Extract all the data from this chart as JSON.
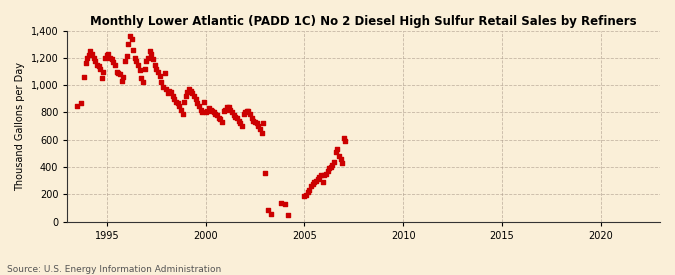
{
  "title": "Monthly Lower Atlantic (PADD 1C) No 2 Diesel High Sulfur Retail Sales by Refiners",
  "ylabel": "Thousand Gallons per Day",
  "source": "Source: U.S. Energy Information Administration",
  "background_color": "#faefd8",
  "marker_color": "#cc0000",
  "xlim": [
    1993.0,
    2023.0
  ],
  "ylim": [
    0,
    1400
  ],
  "yticks": [
    0,
    200,
    400,
    600,
    800,
    1000,
    1200,
    1400
  ],
  "xticks": [
    1995,
    2000,
    2005,
    2010,
    2015,
    2020
  ],
  "data_x": [
    1993.5,
    1993.67,
    1993.83,
    1993.92,
    1994.0,
    1994.08,
    1994.17,
    1994.25,
    1994.33,
    1994.42,
    1994.5,
    1994.58,
    1994.67,
    1994.75,
    1994.83,
    1994.92,
    1995.0,
    1995.08,
    1995.17,
    1995.25,
    1995.33,
    1995.42,
    1995.5,
    1995.58,
    1995.67,
    1995.75,
    1995.83,
    1995.92,
    1996.0,
    1996.08,
    1996.17,
    1996.25,
    1996.33,
    1996.42,
    1996.5,
    1996.58,
    1996.67,
    1996.75,
    1996.83,
    1996.92,
    1997.0,
    1997.08,
    1997.17,
    1997.25,
    1997.33,
    1997.42,
    1997.5,
    1997.58,
    1997.67,
    1997.75,
    1997.83,
    1997.92,
    1998.0,
    1998.08,
    1998.17,
    1998.25,
    1998.33,
    1998.42,
    1998.5,
    1998.58,
    1998.67,
    1998.75,
    1998.83,
    1998.92,
    1999.0,
    1999.08,
    1999.17,
    1999.25,
    1999.33,
    1999.42,
    1999.5,
    1999.58,
    1999.67,
    1999.75,
    1999.83,
    1999.92,
    2000.0,
    2000.08,
    2000.17,
    2000.25,
    2000.33,
    2000.42,
    2000.5,
    2000.58,
    2000.67,
    2000.75,
    2000.83,
    2000.92,
    2001.0,
    2001.08,
    2001.17,
    2001.25,
    2001.33,
    2001.42,
    2001.5,
    2001.58,
    2001.67,
    2001.75,
    2001.83,
    2001.92,
    2002.0,
    2002.08,
    2002.17,
    2002.25,
    2002.33,
    2002.42,
    2002.5,
    2002.58,
    2002.67,
    2002.75,
    2002.83,
    2002.92,
    2003.0,
    2003.17,
    2003.33,
    2003.83,
    2004.0,
    2004.17,
    2005.0,
    2005.08,
    2005.17,
    2005.25,
    2005.33,
    2005.42,
    2005.5,
    2005.58,
    2005.67,
    2005.75,
    2005.83,
    2005.92,
    2006.0,
    2006.08,
    2006.17,
    2006.25,
    2006.33,
    2006.42,
    2006.5,
    2006.58,
    2006.67,
    2006.75,
    2006.83,
    2006.92,
    2007.0,
    2007.08
  ],
  "data_y": [
    850,
    870,
    1060,
    1160,
    1200,
    1220,
    1250,
    1230,
    1200,
    1180,
    1150,
    1140,
    1120,
    1050,
    1100,
    1200,
    1220,
    1230,
    1200,
    1190,
    1170,
    1150,
    1100,
    1090,
    1080,
    1030,
    1060,
    1180,
    1210,
    1300,
    1360,
    1340,
    1260,
    1200,
    1180,
    1150,
    1110,
    1050,
    1020,
    1120,
    1180,
    1200,
    1250,
    1230,
    1190,
    1150,
    1120,
    1100,
    1070,
    1020,
    990,
    1090,
    970,
    940,
    960,
    950,
    920,
    900,
    880,
    870,
    850,
    820,
    790,
    880,
    920,
    950,
    970,
    960,
    940,
    920,
    900,
    870,
    850,
    820,
    800,
    880,
    800,
    810,
    830,
    820,
    810,
    800,
    790,
    780,
    760,
    750,
    730,
    810,
    820,
    840,
    840,
    820,
    800,
    780,
    770,
    760,
    740,
    720,
    700,
    790,
    800,
    810,
    810,
    790,
    760,
    740,
    730,
    720,
    700,
    680,
    650,
    720,
    355,
    85,
    60,
    140,
    130,
    50,
    185,
    195,
    215,
    235,
    260,
    275,
    290,
    295,
    310,
    330,
    340,
    290,
    340,
    350,
    370,
    390,
    400,
    415,
    435,
    510,
    530,
    480,
    460,
    430,
    610,
    590
  ]
}
